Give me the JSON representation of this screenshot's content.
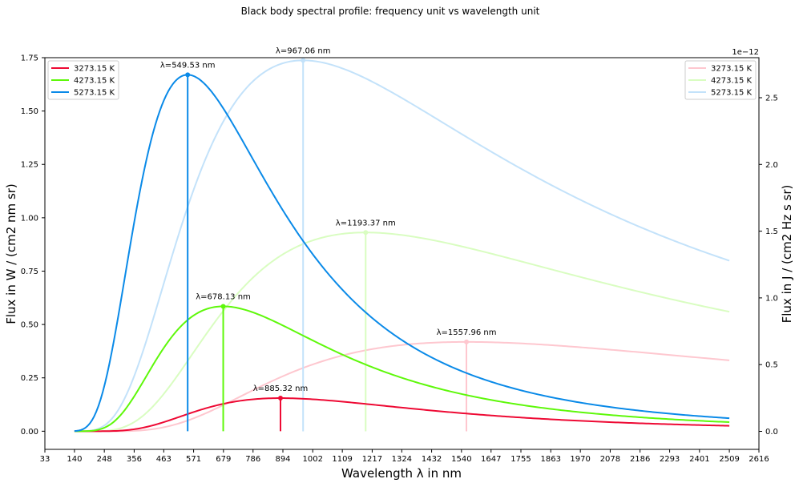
{
  "chart_data": {
    "type": "line",
    "title": "Black body spectral profile: frequency unit vs wavelength unit",
    "xlabel": "Wavelength λ in nm",
    "ylabel_left": "Flux in W / (cm2 nm sr)",
    "ylabel_right": "Flux in J / (cm2 Hz s sr)",
    "right_axis_multiplier": "1e−12",
    "x_range": [
      140,
      2509
    ],
    "xlim": [
      33,
      2616
    ],
    "ylim_left": [
      -0.085,
      1.75
    ],
    "ylim_right": [
      -0.135,
      2.8
    ],
    "x_ticks": [
      "33",
      "140",
      "248",
      "356",
      "463",
      "571",
      "679",
      "786",
      "894",
      "1002",
      "1109",
      "1217",
      "1324",
      "1432",
      "1540",
      "1647",
      "1755",
      "1863",
      "1970",
      "2078",
      "2186",
      "2293",
      "2401",
      "2509",
      "2616"
    ],
    "y_ticks_left": [
      "0.00",
      "0.25",
      "0.50",
      "0.75",
      "1.00",
      "1.25",
      "1.50",
      "1.75"
    ],
    "y_ticks_right": [
      "0.0",
      "0.5",
      "1.0",
      "1.5",
      "2.0",
      "2.5"
    ],
    "grid": false,
    "legend_left_position": "upper-left",
    "legend_right_position": "upper-right",
    "series": [
      {
        "name": "3273.15 K",
        "temperature": 3273.15,
        "axis": "left",
        "color": "#ee0a34",
        "peak_x": 885.32,
        "peak_y": 0.155,
        "peak_label": "λ=885.32 nm"
      },
      {
        "name": "4273.15 K",
        "temperature": 4273.15,
        "axis": "left",
        "color": "#5ef80a",
        "peak_x": 678.13,
        "peak_y": 0.585,
        "peak_label": "λ=678.13 nm"
      },
      {
        "name": "5273.15 K",
        "temperature": 5273.15,
        "axis": "left",
        "color": "#0a8ae8",
        "peak_x": 549.53,
        "peak_y": 1.67,
        "peak_label": "λ=549.53 nm"
      },
      {
        "name": "3273.15 K",
        "temperature": 3273.15,
        "axis": "right",
        "color": "#fec7cf",
        "peak_x": 1557.96,
        "peak_y": 0.67,
        "peak_label": "λ=1557.96 nm"
      },
      {
        "name": "4273.15 K",
        "temperature": 4273.15,
        "axis": "right",
        "color": "#d9fdc1",
        "peak_x": 1193.37,
        "peak_y": 1.49,
        "peak_label": "λ=1193.37 nm"
      },
      {
        "name": "5273.15 K",
        "temperature": 5273.15,
        "axis": "right",
        "color": "#c3e2fa",
        "peak_x": 967.06,
        "peak_y": 2.78,
        "peak_label": "λ=967.06 nm"
      }
    ]
  }
}
